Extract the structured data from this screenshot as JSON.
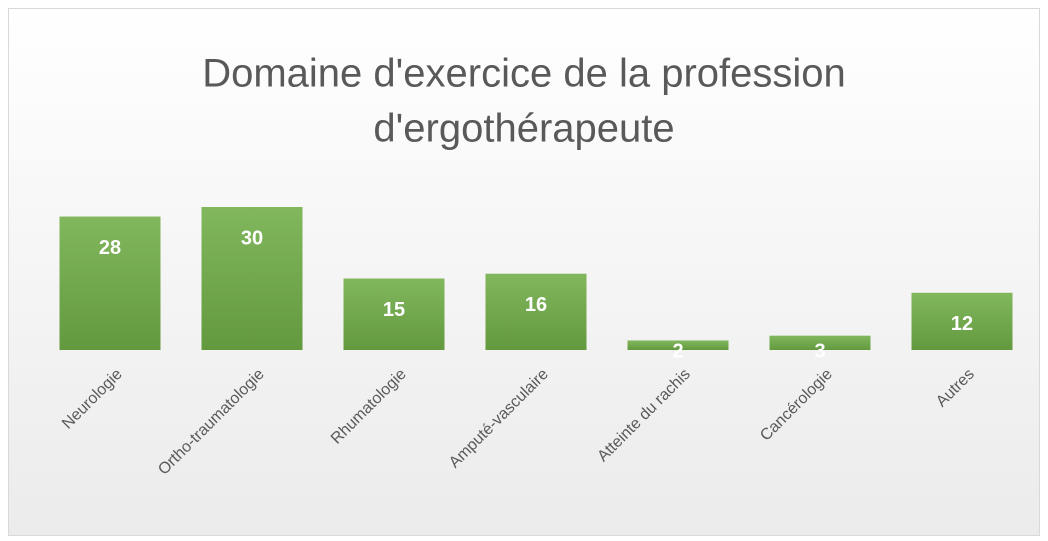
{
  "chart_data": {
    "type": "bar",
    "title": [
      "Domaine d'exercice de la profession",
      "d'ergothérapeute"
    ],
    "categories": [
      "Neurologie",
      "Ortho-traumatologie",
      "Rhumatologie",
      "Amputé-vasculaire",
      "Atteinte du rachis",
      "Cancérologie",
      "Autres"
    ],
    "values": [
      28,
      30,
      15,
      16,
      2,
      3,
      12
    ],
    "color": "#70ad47"
  }
}
